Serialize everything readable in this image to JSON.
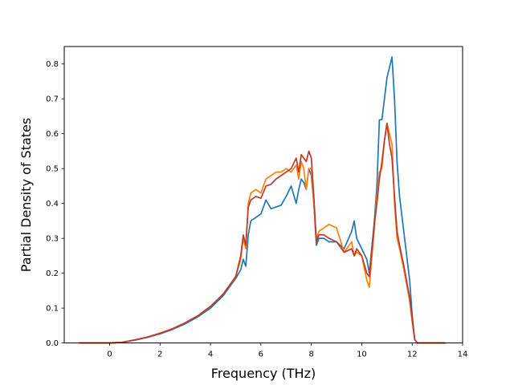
{
  "chart_data": {
    "type": "line",
    "title": "",
    "xlabel": "Frequency (THz)",
    "ylabel": "Partial Density of States",
    "xlim": [
      -1.8,
      14.0
    ],
    "ylim": [
      0.0,
      0.85
    ],
    "xticks": [
      0,
      2,
      4,
      6,
      8,
      10,
      12,
      14
    ],
    "yticks": [
      0.0,
      0.1,
      0.2,
      0.3,
      0.4,
      0.5,
      0.6,
      0.7,
      0.8
    ],
    "xtick_labels": [
      "0",
      "2",
      "4",
      "6",
      "8",
      "10",
      "12",
      "14"
    ],
    "ytick_labels": [
      "0.0",
      "0.1",
      "0.2",
      "0.3",
      "0.4",
      "0.5",
      "0.6",
      "0.7",
      "0.8"
    ],
    "grid": false,
    "legend": "none",
    "series": [
      {
        "color": "#1f77b4",
        "x": [
          -1.2,
          -0.5,
          0.0,
          0.5,
          1.0,
          1.5,
          2.0,
          2.5,
          3.0,
          3.5,
          4.0,
          4.5,
          5.0,
          5.2,
          5.3,
          5.4,
          5.5,
          5.6,
          5.8,
          6.0,
          6.2,
          6.4,
          6.6,
          6.8,
          7.0,
          7.2,
          7.4,
          7.5,
          7.6,
          7.7,
          7.8,
          7.9,
          8.0,
          8.1,
          8.2,
          8.3,
          8.5,
          8.7,
          9.0,
          9.3,
          9.6,
          9.7,
          9.8,
          10.0,
          10.2,
          10.3,
          10.5,
          10.6,
          10.7,
          10.8,
          10.9,
          11.0,
          11.1,
          11.2,
          11.3,
          11.4,
          11.5,
          11.7,
          11.9,
          12.0,
          12.1,
          12.2,
          12.5,
          13.3
        ],
        "y": [
          0.0,
          0.0,
          0.0,
          0.002,
          0.008,
          0.016,
          0.026,
          0.039,
          0.055,
          0.075,
          0.1,
          0.135,
          0.185,
          0.21,
          0.24,
          0.22,
          0.31,
          0.35,
          0.36,
          0.37,
          0.41,
          0.385,
          0.39,
          0.395,
          0.42,
          0.45,
          0.4,
          0.44,
          0.47,
          0.46,
          0.44,
          0.5,
          0.48,
          0.4,
          0.28,
          0.3,
          0.3,
          0.29,
          0.29,
          0.27,
          0.32,
          0.35,
          0.3,
          0.27,
          0.24,
          0.2,
          0.35,
          0.45,
          0.64,
          0.64,
          0.7,
          0.76,
          0.79,
          0.82,
          0.7,
          0.52,
          0.42,
          0.3,
          0.18,
          0.08,
          0.01,
          0.0,
          0.0,
          0.0
        ]
      },
      {
        "color": "#ff7f0e",
        "x": [
          -1.2,
          -0.5,
          0.0,
          0.5,
          1.0,
          1.5,
          2.0,
          2.5,
          3.0,
          3.5,
          4.0,
          4.5,
          5.0,
          5.2,
          5.3,
          5.4,
          5.5,
          5.6,
          5.8,
          6.0,
          6.2,
          6.4,
          6.6,
          6.8,
          7.0,
          7.2,
          7.4,
          7.5,
          7.6,
          7.7,
          7.8,
          7.9,
          8.0,
          8.1,
          8.2,
          8.3,
          8.5,
          8.7,
          9.0,
          9.3,
          9.6,
          9.7,
          9.8,
          10.0,
          10.2,
          10.3,
          10.5,
          10.6,
          10.7,
          10.8,
          10.9,
          11.0,
          11.1,
          11.2,
          11.3,
          11.4,
          11.5,
          11.7,
          11.9,
          12.0,
          12.1,
          12.2,
          12.5,
          13.3
        ],
        "y": [
          0.0,
          0.0,
          0.0,
          0.002,
          0.009,
          0.017,
          0.028,
          0.041,
          0.058,
          0.078,
          0.105,
          0.14,
          0.19,
          0.24,
          0.3,
          0.27,
          0.4,
          0.43,
          0.44,
          0.43,
          0.47,
          0.48,
          0.49,
          0.49,
          0.5,
          0.49,
          0.51,
          0.47,
          0.52,
          0.5,
          0.44,
          0.5,
          0.5,
          0.4,
          0.3,
          0.32,
          0.33,
          0.34,
          0.33,
          0.26,
          0.29,
          0.25,
          0.26,
          0.25,
          0.18,
          0.16,
          0.33,
          0.42,
          0.49,
          0.5,
          0.58,
          0.63,
          0.6,
          0.57,
          0.4,
          0.3,
          0.27,
          0.2,
          0.12,
          0.06,
          0.01,
          0.0,
          0.0,
          0.0
        ]
      },
      {
        "color": "#c0392b",
        "x": [
          -1.2,
          -0.5,
          0.0,
          0.5,
          1.0,
          1.5,
          2.0,
          2.5,
          3.0,
          3.5,
          4.0,
          4.5,
          5.0,
          5.2,
          5.3,
          5.4,
          5.5,
          5.6,
          5.8,
          6.0,
          6.2,
          6.4,
          6.6,
          6.8,
          7.0,
          7.2,
          7.4,
          7.5,
          7.6,
          7.7,
          7.8,
          7.9,
          8.0,
          8.1,
          8.2,
          8.3,
          8.5,
          8.7,
          9.0,
          9.3,
          9.6,
          9.7,
          9.8,
          10.0,
          10.2,
          10.3,
          10.5,
          10.6,
          10.7,
          10.8,
          10.9,
          11.0,
          11.1,
          11.2,
          11.3,
          11.4,
          11.5,
          11.7,
          11.9,
          12.0,
          12.1,
          12.2,
          12.5,
          13.3
        ],
        "y": [
          0.0,
          0.0,
          0.0,
          0.002,
          0.009,
          0.017,
          0.028,
          0.041,
          0.058,
          0.078,
          0.105,
          0.14,
          0.19,
          0.25,
          0.31,
          0.28,
          0.39,
          0.41,
          0.42,
          0.415,
          0.45,
          0.455,
          0.47,
          0.48,
          0.49,
          0.5,
          0.53,
          0.49,
          0.54,
          0.53,
          0.52,
          0.55,
          0.53,
          0.42,
          0.29,
          0.31,
          0.31,
          0.3,
          0.29,
          0.26,
          0.27,
          0.25,
          0.27,
          0.25,
          0.2,
          0.19,
          0.34,
          0.4,
          0.47,
          0.52,
          0.58,
          0.63,
          0.57,
          0.53,
          0.42,
          0.32,
          0.28,
          0.21,
          0.13,
          0.07,
          0.01,
          0.0,
          0.0,
          0.0
        ]
      }
    ]
  }
}
